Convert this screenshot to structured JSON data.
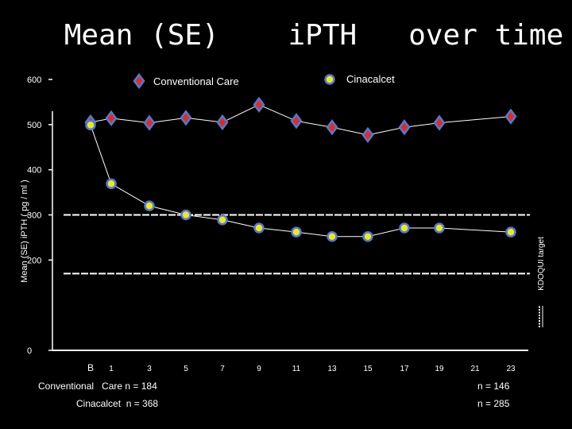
{
  "chart_data": {
    "type": "line",
    "title": "Mean (SE)    iPTH   over time",
    "ylabel": "Mean  (SE)  iPTH  ( pg / ml )",
    "ylim": [
      0,
      600
    ],
    "yticks": [
      0,
      200,
      300,
      400,
      500,
      600
    ],
    "x_categories": [
      "B",
      "1",
      "3",
      "5",
      "7",
      "9",
      "11",
      "13",
      "15",
      "17",
      "19",
      "21",
      "23"
    ],
    "series": [
      {
        "name": "Conventional  Care",
        "marker": "diamond",
        "color": "#d32f2f",
        "points": [
          {
            "x": "B",
            "y": 505
          },
          {
            "x": "1",
            "y": 514
          },
          {
            "x": "3",
            "y": 504
          },
          {
            "x": "5",
            "y": 515
          },
          {
            "x": "7",
            "y": 505
          },
          {
            "x": "9",
            "y": 544
          },
          {
            "x": "11",
            "y": 508
          },
          {
            "x": "13",
            "y": 494
          },
          {
            "x": "15",
            "y": 477
          },
          {
            "x": "17",
            "y": 494
          },
          {
            "x": "19",
            "y": 504
          },
          {
            "x": "23",
            "y": 518
          }
        ]
      },
      {
        "name": "Cinacalcet",
        "marker": "circle",
        "color": "#e8e830",
        "points": [
          {
            "x": "B",
            "y": 499
          },
          {
            "x": "1",
            "y": 369
          },
          {
            "x": "3",
            "y": 320
          },
          {
            "x": "5",
            "y": 300
          },
          {
            "x": "7",
            "y": 289
          },
          {
            "x": "9",
            "y": 271
          },
          {
            "x": "11",
            "y": 262
          },
          {
            "x": "13",
            "y": 252
          },
          {
            "x": "15",
            "y": 252
          },
          {
            "x": "17",
            "y": 271
          },
          {
            "x": "19",
            "y": 271
          },
          {
            "x": "23",
            "y": 262
          }
        ]
      }
    ],
    "reference_lines": [
      {
        "y": 300,
        "style": "dashed"
      },
      {
        "y": 170,
        "style": "dashed"
      }
    ],
    "reference_label": "KDOQUI  target",
    "grid": false,
    "legend": "top"
  },
  "notes": {
    "conventional_n": "Conventional   Care n = 184",
    "cinacalcet_n": "Cinacalcet  n = 368",
    "conventional_n_end": "n = 146",
    "cinacalcet_n_end": "n = 285"
  }
}
